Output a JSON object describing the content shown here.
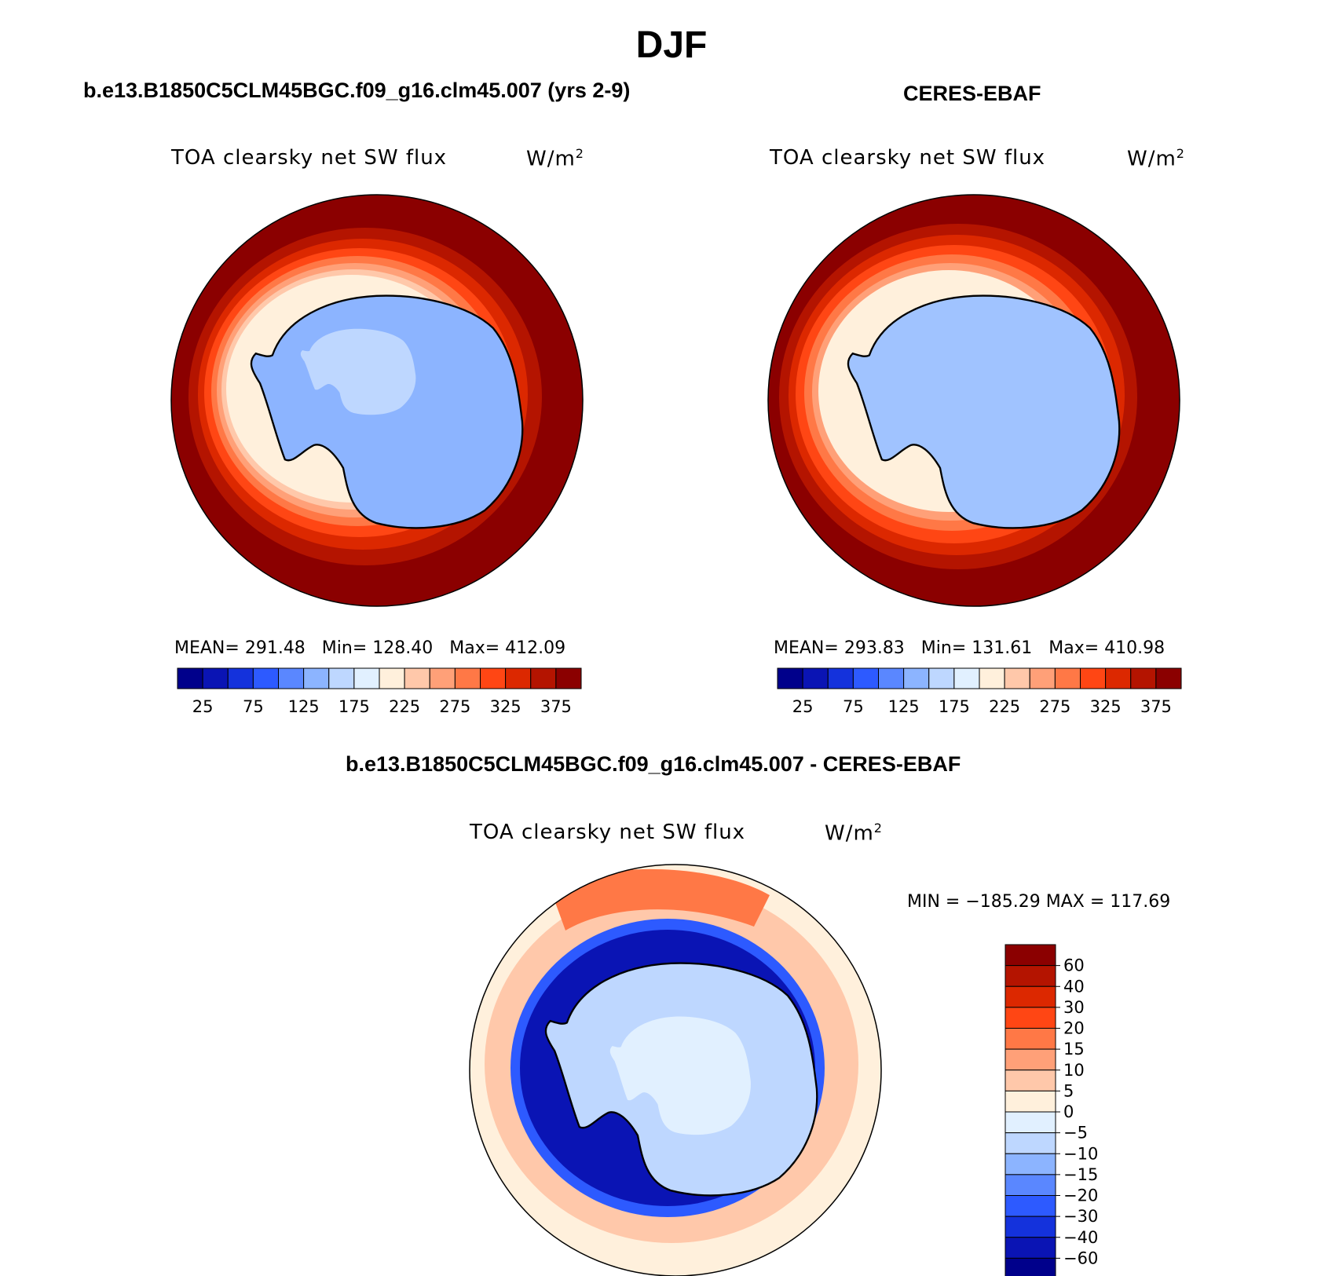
{
  "title": "DJF",
  "panels": [
    {
      "case": "b.e13.B1850C5CLM45BGC.f09_g16.clm45.007 (yrs 2-9)",
      "variable": "TOA clearsky net SW flux",
      "units": "W/m",
      "units_sup": "2",
      "stats": {
        "mean_label": "MEAN=",
        "mean": "291.48",
        "min_label": "Min=",
        "min": "128.40",
        "max_label": "Max=",
        "max": "412.09"
      }
    },
    {
      "case": "CERES-EBAF",
      "variable": "TOA clearsky net SW flux",
      "units": "W/m",
      "units_sup": "2",
      "stats": {
        "mean_label": "MEAN=",
        "mean": "293.83",
        "min_label": "Min=",
        "min": "131.61",
        "max_label": "Max=",
        "max": "410.98"
      }
    }
  ],
  "difference": {
    "case": "b.e13.B1850C5CLM45BGC.f09_g16.clm45.007 - CERES-EBAF",
    "variable": "TOA clearsky net SW flux",
    "units": "W/m",
    "units_sup": "2",
    "minmax": "MIN = −185.29  MAX = 117.69"
  },
  "colorbar_abs": {
    "colors": [
      "#00008b",
      "#0a14b4",
      "#1432dc",
      "#2d5aff",
      "#5a87ff",
      "#8cb4ff",
      "#bed7ff",
      "#e1f0ff",
      "#fff0dc",
      "#ffc8aa",
      "#ffa078",
      "#ff7846",
      "#ff4614",
      "#dc2800",
      "#b41400",
      "#8b0000"
    ],
    "labels": [
      "25",
      "75",
      "125",
      "175",
      "225",
      "275",
      "325",
      "375"
    ]
  },
  "colorbar_diff": {
    "colors": [
      "#8b0000",
      "#b41400",
      "#dc2800",
      "#ff4614",
      "#ff7846",
      "#ffa078",
      "#ffc8aa",
      "#fff0dc",
      "#e1f0ff",
      "#bed7ff",
      "#8cb4ff",
      "#5a87ff",
      "#2d5aff",
      "#1432dc",
      "#0a14b4",
      "#00008b"
    ],
    "labels": [
      "60",
      "40",
      "30",
      "20",
      "15",
      "10",
      "5",
      "0",
      "−5",
      "−10",
      "−15",
      "−20",
      "−30",
      "−40",
      "−60"
    ]
  }
}
